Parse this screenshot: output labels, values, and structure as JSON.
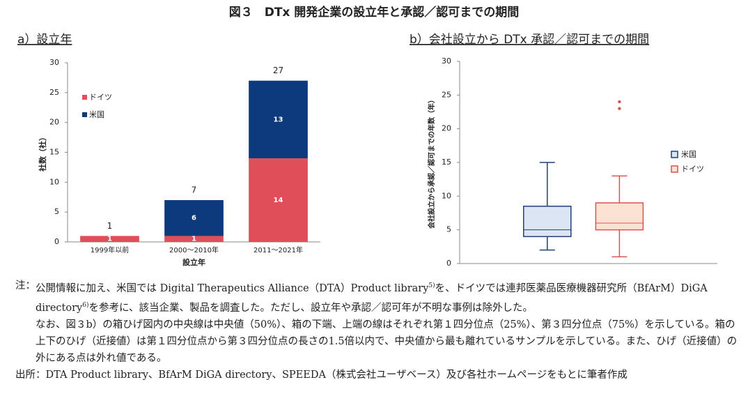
{
  "title": "図３　DTx 開発企業の設立年と承認／認可までの期間",
  "chart_data": [
    {
      "type": "bar",
      "stacked": true,
      "subtitle": "a）設立年",
      "categories": [
        "1999年以前",
        "2000～2010年",
        "2011～2021年"
      ],
      "series": [
        {
          "name": "ドイツ",
          "color": "#e04e5a",
          "values": [
            1,
            1,
            14
          ]
        },
        {
          "name": "米国",
          "color": "#0d3a7a",
          "values": [
            0,
            6,
            13
          ]
        }
      ],
      "totals": [
        1,
        7,
        27
      ],
      "xlabel": "設立年",
      "ylabel": "社数（社）",
      "ylim": [
        0,
        30
      ],
      "yticks": [
        0,
        5,
        10,
        15,
        20,
        25,
        30
      ],
      "legend": "upper left"
    },
    {
      "type": "box",
      "subtitle": "b）会社設立から DTx 承認／認可までの期間",
      "ylabel": "会社設立から承認／認可までの年数（年）",
      "series": [
        {
          "name": "米国",
          "color": "#1f3f7a",
          "fill": "#dbe5f4",
          "low": 2,
          "q1": 4,
          "median": 5,
          "q3": 8.5,
          "high": 15,
          "outliers": []
        },
        {
          "name": "ドイツ",
          "color": "#d9534f",
          "fill": "#fbe3d4",
          "low": 1,
          "q1": 5,
          "median": 6,
          "q3": 9,
          "high": 13,
          "outliers": [
            23,
            24
          ]
        }
      ],
      "ylim": [
        0,
        30
      ],
      "yticks": [
        0,
        5,
        10,
        15,
        20,
        25,
        30
      ],
      "legend": "right"
    }
  ],
  "notes": [
    {
      "label": "注：",
      "paragraphs": [
        [
          "公開情報に加え、米国では Digital Therapeutics Alliance（DTA）Product library",
          "5)",
          "を、ドイツでは連邦医薬品医療機器研究所（BfArM）DiGA directory",
          "6)",
          "を参考に、該当企業、製品を調査した。ただし、設立年や承認／認可年が不明な事例は除外した。"
        ],
        [
          "なお、図３b）の箱ひげ図内の中央線は中央値（50%）、箱の下端、上端の線はそれぞれ第１四分位点（25%）、第３四分位点（75%）を示している。箱の上下のひげ（近接値）は第１四分位点から第３四分位点の長さの1.5倍以内で、中央値から最も離れているサンプルを示している。また、ひげ（近接値）の外にある点は外れ値である。"
        ]
      ]
    },
    {
      "label": "出所：",
      "paragraphs": [
        [
          "DTA Product library、BfArM DiGA directory、SPEEDA（株式会社ユーザベース）及び各社ホームページをもとに筆者作成"
        ]
      ]
    }
  ]
}
